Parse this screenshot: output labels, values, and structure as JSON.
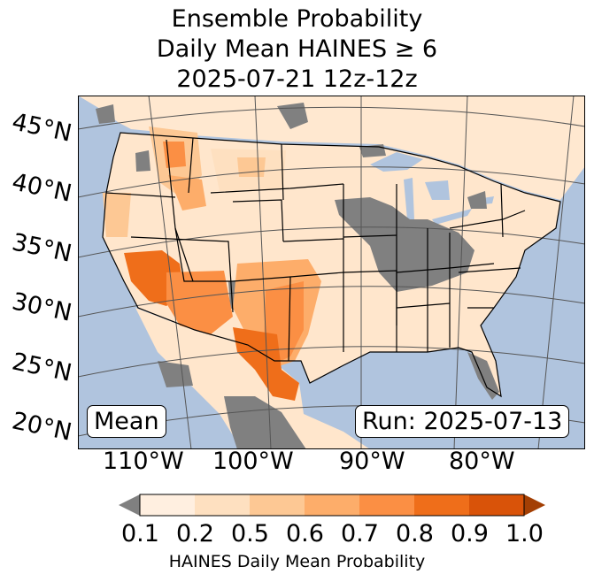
{
  "title": {
    "line1": "Ensemble Probability",
    "line2": "Daily Mean HAINES ≥ 6",
    "line3": "2025-07-21 12z-12z"
  },
  "map": {
    "lat_labels": [
      "45°N",
      "40°N",
      "35°N",
      "30°N",
      "25°N",
      "20°N"
    ],
    "lon_labels": [
      "110°W",
      "100°W",
      "90°W",
      "80°W"
    ],
    "mean_label": "Mean",
    "run_label": "Run: 2025-07-13",
    "colors": {
      "ocean": "#b0c4de",
      "land_low": "#ffe6cc",
      "missing": "#808080"
    }
  },
  "colorbar": {
    "ticks": [
      "0.1",
      "0.2",
      "0.5",
      "0.6",
      "0.7",
      "0.8",
      "0.9",
      "1.0"
    ],
    "colors": [
      "#ffefe0",
      "#fee0c0",
      "#fdc894",
      "#fdad6a",
      "#fb8f44",
      "#ef6e1a",
      "#d95309"
    ],
    "under_color": "#808080",
    "over_color": "#a33f04",
    "label": "HAINES Daily Mean Probability"
  }
}
